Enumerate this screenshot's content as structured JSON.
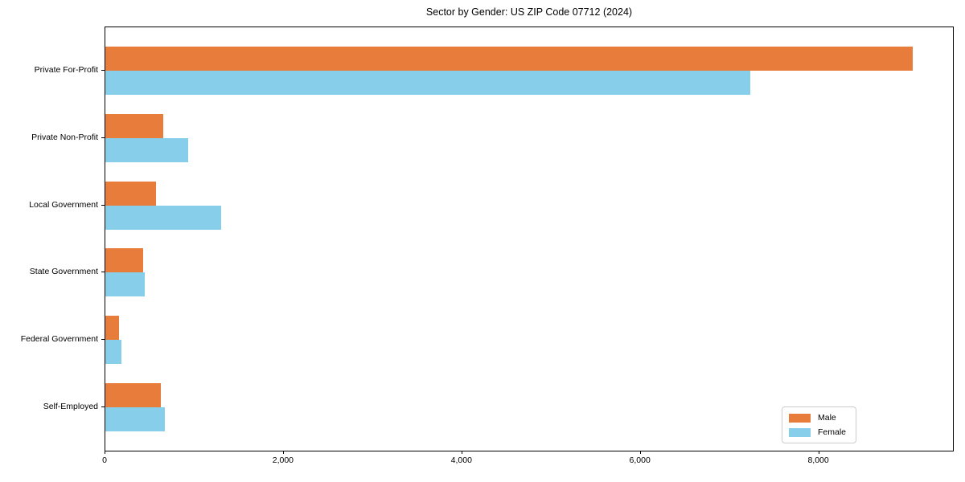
{
  "figure": {
    "title": "Sector by Gender: US ZIP Code 07712 (2024)"
  },
  "chart_data": {
    "type": "bar",
    "orientation": "horizontal",
    "title": "Sector by Gender: US ZIP Code 07712 (2024)",
    "categories": [
      "Private For-Profit",
      "Private Non-Profit",
      "Local Government",
      "State Government",
      "Federal Government",
      "Self-Employed"
    ],
    "series": [
      {
        "name": "Male",
        "color": "#E87D3B",
        "values": [
          9050,
          645,
          570,
          425,
          155,
          620
        ]
      },
      {
        "name": "Female",
        "color": "#87CEEB",
        "values": [
          7230,
          930,
          1300,
          440,
          180,
          665
        ]
      }
    ],
    "xlabel": "",
    "ylabel": "",
    "xlim": [
      0,
      9500
    ],
    "x_ticks": [
      0,
      2000,
      4000,
      6000,
      8000
    ],
    "x_tick_labels": [
      "0",
      "2,000",
      "4,000",
      "6,000",
      "8,000"
    ],
    "grid": false,
    "legend": {
      "position": "lower right",
      "entries": [
        "Male",
        "Female"
      ]
    }
  },
  "legend": {
    "male_label": "Male",
    "female_label": "Female"
  }
}
